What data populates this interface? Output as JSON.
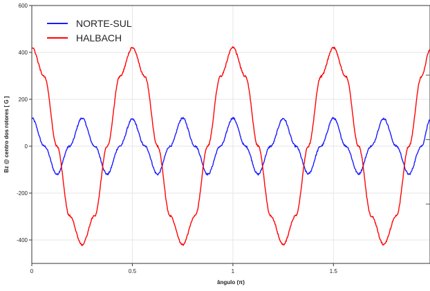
{
  "chart_data": {
    "type": "line",
    "xlabel": "ângulo (π)",
    "ylabel": "Bz @ centro dos rotores [ G ]",
    "xlim": [
      0,
      1.98
    ],
    "ylim": [
      -500,
      600
    ],
    "x_ticks": [
      0,
      0.5,
      1,
      1.5
    ],
    "x_tick_labels": [
      "0",
      "0.5",
      "1",
      "1.5"
    ],
    "y_ticks": [
      -400,
      -200,
      0,
      200,
      400,
      600
    ],
    "y_tick_labels": [
      "-400",
      "-200",
      "0",
      "200",
      "400",
      "600"
    ],
    "grid": true,
    "legend_position": "top-left",
    "series": [
      {
        "name": "NORTE-SUL",
        "color": "#1a1aff",
        "x": [
          0,
          0.0625,
          0.125,
          0.1875,
          0.25,
          0.3125,
          0.375,
          0.4375,
          0.5,
          0.5625,
          0.625,
          0.6875,
          0.75,
          0.8125,
          0.875,
          0.9375,
          1.0,
          1.0625,
          1.125,
          1.1875,
          1.25,
          1.3125,
          1.375,
          1.4375,
          1.5,
          1.5625,
          1.625,
          1.6875,
          1.75,
          1.8125,
          1.875,
          1.9375,
          1.98
        ],
        "y": [
          120,
          0,
          -120,
          0,
          120,
          0,
          -120,
          0,
          115,
          0,
          -120,
          0,
          120,
          0,
          -120,
          0,
          120,
          0,
          -120,
          0,
          118,
          0,
          -118,
          0,
          120,
          0,
          -118,
          0,
          118,
          0,
          -120,
          0,
          110
        ]
      },
      {
        "name": "HALBACH",
        "color": "#ff0000",
        "x": [
          0,
          0.0625,
          0.125,
          0.1875,
          0.25,
          0.3125,
          0.375,
          0.4375,
          0.5,
          0.5625,
          0.625,
          0.6875,
          0.75,
          0.8125,
          0.875,
          0.9375,
          1.0,
          1.0625,
          1.125,
          1.1875,
          1.25,
          1.3125,
          1.375,
          1.4375,
          1.5,
          1.5625,
          1.625,
          1.6875,
          1.75,
          1.8125,
          1.875,
          1.9375,
          1.98
        ],
        "y": [
          420,
          297,
          0,
          -297,
          -420,
          -297,
          0,
          297,
          420,
          297,
          0,
          -297,
          -420,
          -297,
          0,
          297,
          420,
          297,
          0,
          -297,
          -420,
          -297,
          0,
          297,
          420,
          297,
          0,
          -297,
          -420,
          -297,
          0,
          297,
          410
        ]
      }
    ]
  }
}
